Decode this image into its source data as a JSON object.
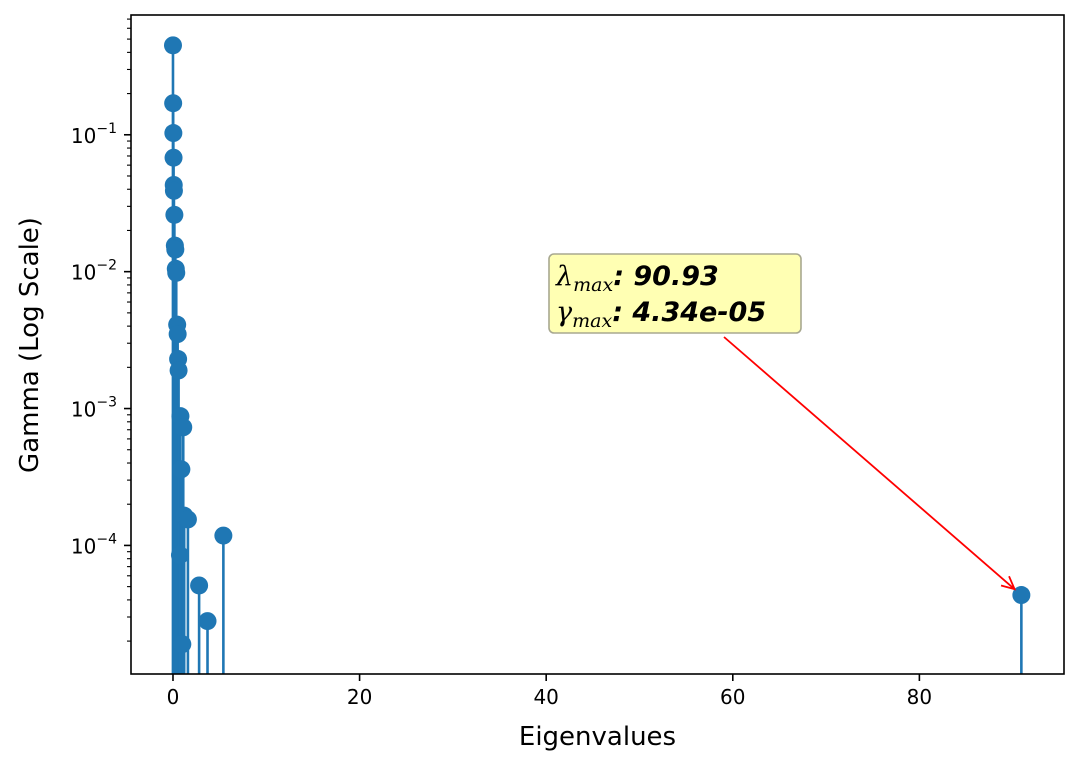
{
  "chart_data": {
    "type": "stem",
    "xlabel": "Eigenvalues",
    "ylabel": "Gamma (Log Scale)",
    "yscale": "log",
    "xlim": [
      -4.5,
      95.5
    ],
    "ylim": [
      1.15e-05,
      0.75
    ],
    "x_ticks": [
      0,
      20,
      40,
      60,
      80
    ],
    "y_ticks": [
      {
        "value": 0.1,
        "base": "10",
        "exp": "−1"
      },
      {
        "value": 0.01,
        "base": "10",
        "exp": "−2"
      },
      {
        "value": 0.001,
        "base": "10",
        "exp": "−3"
      },
      {
        "value": 0.0001,
        "base": "10",
        "exp": "−4"
      }
    ],
    "color": "#1f77b4",
    "points": [
      {
        "x": 0.0,
        "y": 0.45
      },
      {
        "x": 0.02,
        "y": 0.17
      },
      {
        "x": 0.04,
        "y": 0.103
      },
      {
        "x": 0.06,
        "y": 0.068
      },
      {
        "x": 0.08,
        "y": 0.043
      },
      {
        "x": 0.1,
        "y": 0.039
      },
      {
        "x": 0.15,
        "y": 0.026
      },
      {
        "x": 0.2,
        "y": 0.0155
      },
      {
        "x": 0.25,
        "y": 0.0145
      },
      {
        "x": 0.3,
        "y": 0.0105
      },
      {
        "x": 0.35,
        "y": 0.0098
      },
      {
        "x": 0.45,
        "y": 0.0041
      },
      {
        "x": 0.5,
        "y": 0.0035
      },
      {
        "x": 0.55,
        "y": 0.0023
      },
      {
        "x": 0.6,
        "y": 0.0019
      },
      {
        "x": 0.8,
        "y": 0.00088
      },
      {
        "x": 1.1,
        "y": 0.00073
      },
      {
        "x": 0.9,
        "y": 0.00036
      },
      {
        "x": 1.2,
        "y": 0.000165
      },
      {
        "x": 1.6,
        "y": 0.000155
      },
      {
        "x": 0.75,
        "y": 8.5e-05
      },
      {
        "x": 5.4,
        "y": 0.000118
      },
      {
        "x": 2.8,
        "y": 5.1e-05
      },
      {
        "x": 3.7,
        "y": 2.8e-05
      },
      {
        "x": 1.0,
        "y": 1.9e-05
      },
      {
        "x": 90.93,
        "y": 4.34e-05
      }
    ],
    "annotation": {
      "line1_symbol": "λ",
      "line1_sub": "max",
      "line1_value": ": 90.93",
      "line2_symbol": "γ",
      "line2_sub": "max",
      "line2_value": ": 4.34e-05",
      "target": {
        "x": 90.93,
        "y": 4.34e-05
      },
      "box_color": "#ffffb3",
      "arrow_color": "#ff0000"
    }
  }
}
